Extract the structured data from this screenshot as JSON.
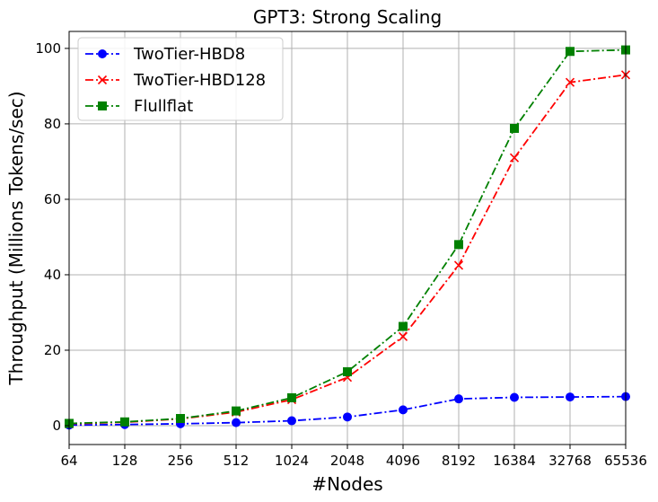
{
  "chart_data": {
    "type": "line",
    "title": "GPT3: Strong Scaling",
    "xlabel": "#Nodes",
    "ylabel": "Throughput (Millions Tokens/sec)",
    "categories": [
      "64",
      "128",
      "256",
      "512",
      "1024",
      "2048",
      "4096",
      "8192",
      "16384",
      "32768",
      "65536"
    ],
    "y_ticks": [
      "0",
      "20",
      "40",
      "60",
      "80",
      "100"
    ],
    "ylim": [
      -5,
      104.5
    ],
    "grid": true,
    "legend_position": "top-left",
    "series": [
      {
        "name": "TwoTier-HBD8",
        "color": "#0000ff",
        "marker": "circle",
        "values": [
          0.15,
          0.3,
          0.5,
          0.8,
          1.3,
          2.3,
          4.2,
          7.1,
          7.5,
          7.6,
          7.7
        ]
      },
      {
        "name": "TwoTier-HBD128",
        "color": "#ff0000",
        "marker": "x",
        "values": [
          0.5,
          0.9,
          1.8,
          3.6,
          6.9,
          12.8,
          23.6,
          42.5,
          71.0,
          91.0,
          93.0
        ]
      },
      {
        "name": "Flullflat",
        "color": "#008000",
        "marker": "square",
        "values": [
          0.6,
          1.0,
          1.9,
          3.9,
          7.4,
          14.3,
          26.3,
          48.0,
          78.8,
          99.2,
          99.6
        ]
      }
    ]
  }
}
